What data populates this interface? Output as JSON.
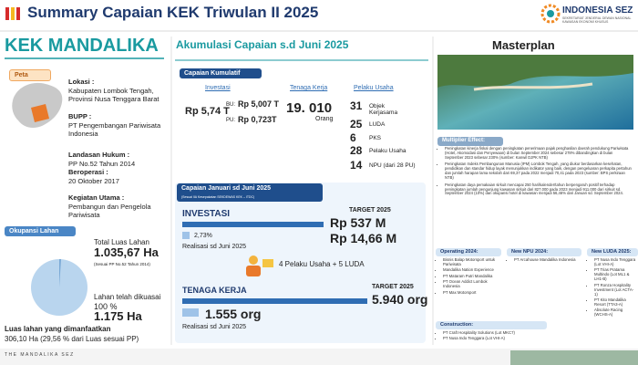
{
  "header": {
    "title": "Summary Capaian KEK Triwulan II 2025",
    "logo_title": "INDONESIA SEZ",
    "logo_subtitle": "SEKRETARIAT JENDERAL DEWAN NASIONAL KAWASAN EKONOMI KHUSUS"
  },
  "profile": {
    "name": "KEK MANDALIKA",
    "map_label": "Peta",
    "items": [
      {
        "label": "Lokasi :",
        "text": "Kabupaten Lombok Tengah, Provinsi Nusa Tenggara Barat"
      },
      {
        "label": "BUPP :",
        "text": "PT Pengembangan Pariwisata Indonesia"
      },
      {
        "label": "Landasan Hukum :",
        "text": "PP No.52 Tahun 2014"
      },
      {
        "label": "Beroperasi :",
        "text": "20 Oktober 2017"
      },
      {
        "label": "Kegiatan Utama :",
        "text": "Pembangun dan Pengelola Pariwisata"
      }
    ]
  },
  "land": {
    "label": "Okupansi Lahan",
    "total_label": "Total Luas Lahan",
    "total_value": "1.035,67 Ha",
    "total_note": "(Sesuai PP No.52 Tahun 2014)",
    "controlled_label": "Lahan telah dikuasai",
    "controlled_percent": "100 %",
    "controlled_value": "1.175 Ha",
    "used_label": "Luas lahan yang dimanfaatkan",
    "used_value": "306,10 Ha (29,56 % dari Luas sesuai PP)"
  },
  "footer": "THE MANDALIKA SEZ",
  "cumulative": {
    "heading": "Akumulasi Capaian s.d Juni 2025",
    "label": "Capaian Kumulatif",
    "investment": {
      "title": "Investasi",
      "total": "Rp 5,74 T",
      "bu_label": "BU:",
      "bu_value": "Rp 5,007 T",
      "pu_label": "PU:",
      "pu_value": "Rp 0,723T"
    },
    "workforce": {
      "title": "Tenaga Kerja",
      "value": "19. 010",
      "unit": "Orang"
    },
    "business": {
      "title": "Pelaku Usaha",
      "rows": [
        {
          "count": "31",
          "label": "Objek Kerjasama"
        },
        {
          "count": "25",
          "label": "LUDA"
        },
        {
          "count": "6",
          "label": "PKS"
        },
        {
          "count": "28",
          "label": "Pelaku Usaha"
        },
        {
          "count": "14",
          "label": "NPU (dari 28 PU)"
        }
      ]
    }
  },
  "period": {
    "title": "Capaian Januari sd Juni 2025",
    "subtitle": "(Sesuai IIA Kesepakatan SEKDEWAS KEK – ITDC)",
    "investment": {
      "title": "INVESTASI",
      "target_label": "TARGET 2025",
      "target": "Rp 537 M",
      "percent": "2,73%",
      "realized": "Rp 14,66 M",
      "realized_label": "Realisasi sd Juni 2025"
    },
    "business": "4 Pelaku Usaha + 5 LUDA",
    "workforce": {
      "title": "TENAGA KERJA",
      "target_label": "TARGET 2025",
      "target": "5.940 org",
      "realized": "1.555 org",
      "realized_label": "Realisasi sd Juni 2025"
    }
  },
  "masterplan": {
    "title": "Masterplan",
    "multiplier_label": "Multiplier Effect:",
    "multiplier_points": [
      "Peningkatan kinerja fiskal dengan peningkatan penerimaan pajak penghasilan daerah pendukung Pariwisata (Hotel, Akomodasi dan Penyewaan) di bulan September 2024 sebesar 278% dibandingkan di bulan September 2023 sebesar 230% (sumber: Kanwil DJPK NTB)",
      "Peningkatan Indeks Pembangunan Manusia (IPM) Lombok Tengah, yang diukur berdasarkan kesehatan, pendidikan dan standar hidup layak menunjukkan indikator yang baik, dengan pengeluaran perkapita pertahun dan jumlah harapan lama sekolah dari 69,37 pada 2022 menjadi 70,41 pada 2023 (sumber: BPS perkiraan NTB)",
      "Peningkatan daya pemakaian sirkuit mencapai 250 hari/kalender/tahun berpengaruh positif terhadap peningkatan jumlah pengunjung kawasan sirkuit dari 827.000 pada 2023 menjadi 911.000 dari sirkuit sd. September 2024 (10%) dan okupansi hotel di kawasan menjadi 56,46% dari Januari sd. September 2024."
    ],
    "operating": {
      "title": "Operating 2024:",
      "items": [
        "Bisnis Balap Motorsport untuk Pariwisata",
        "Mandalika Nation Experience",
        "PT Mataram Putri Mandalika",
        "PT Ocean Addict Lombok Indonesia",
        "PT Max Motorsport"
      ]
    },
    "new_npu": {
      "title": "New NPU 2024:",
      "items": [
        "PT Arcahouse Mandalika Indonesia"
      ]
    },
    "new_luda": {
      "title": "New LUDA 2025:",
      "items": [
        "PT Nusa Indo Tenggara (Lot VHI-A)",
        "PT Trias Pratama Multindo (Lot ML1 & LH1-B)",
        "PT Ronza Hospitality Investment (Lot ACTA-1)",
        "PT Kito Mandalika Resort (TTA3-A)",
        "Absolute Racing (WCHS-A)"
      ]
    },
    "construction": {
      "title": "Construction:",
      "items": [
        "PT Craft Hospitality Solutions (Lot MKC7)",
        "PT Nusa Indo Tenggara (Lot VHI-A)"
      ]
    }
  }
}
